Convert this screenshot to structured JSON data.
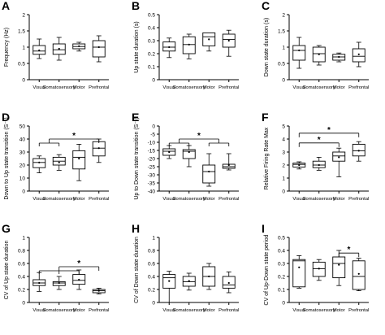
{
  "chart_data": [
    {
      "type": "box",
      "panel_label": "A",
      "ylabel": "Frequency (Hz)",
      "ylim": [
        0,
        2
      ],
      "yticks": [
        0,
        0.5,
        1,
        1.5,
        2
      ],
      "ytick_labels": [
        "0",
        "0.5",
        "1",
        "1.5",
        "2"
      ],
      "categories": [
        "Visual",
        "Somatosensory",
        "Motor",
        "Prefrontal"
      ],
      "boxes": [
        {
          "whislo": 0.65,
          "q1": 0.78,
          "med": 0.88,
          "q3": 1.05,
          "whishi": 1.25,
          "mean": 0.9
        },
        {
          "whislo": 0.6,
          "q1": 0.78,
          "med": 0.92,
          "q3": 1.1,
          "whishi": 1.3,
          "mean": 0.95
        },
        {
          "whislo": 0.88,
          "q1": 0.95,
          "med": 1.02,
          "q3": 1.1,
          "whishi": 1.15,
          "mean": 1.03
        },
        {
          "whislo": 0.55,
          "q1": 0.7,
          "med": 1.0,
          "q3": 1.2,
          "whishi": 1.35,
          "mean": 1.0
        }
      ],
      "significance": []
    },
    {
      "type": "box",
      "panel_label": "B",
      "ylabel": "Up state duration (s)",
      "ylim": [
        0,
        0.5
      ],
      "yticks": [
        0,
        0.1,
        0.2,
        0.3,
        0.4,
        0.5
      ],
      "ytick_labels": [
        "0",
        "0.1",
        "0.2",
        "0.3",
        "0.4",
        "0.5"
      ],
      "categories": [
        "Visual",
        "Somatosensory",
        "Motor",
        "Prefrontal"
      ],
      "boxes": [
        {
          "whislo": 0.17,
          "q1": 0.22,
          "med": 0.25,
          "q3": 0.29,
          "whishi": 0.32,
          "mean": 0.25
        },
        {
          "whislo": 0.16,
          "q1": 0.2,
          "med": 0.27,
          "q3": 0.33,
          "whishi": 0.35,
          "mean": 0.27
        },
        {
          "whislo": 0.22,
          "q1": 0.26,
          "med": 0.33,
          "q3": 0.36,
          "whishi": 0.36,
          "mean": 0.31
        },
        {
          "whislo": 0.18,
          "q1": 0.25,
          "med": 0.31,
          "q3": 0.35,
          "whishi": 0.38,
          "mean": 0.3
        }
      ],
      "significance": []
    },
    {
      "type": "box",
      "panel_label": "C",
      "ylabel": "Down state duration (s)",
      "ylim": [
        0,
        2
      ],
      "yticks": [
        0,
        0.5,
        1,
        1.5,
        2
      ],
      "ytick_labels": [
        "0",
        "0.5",
        "1",
        "1.5",
        "2"
      ],
      "categories": [
        "Visual",
        "Somatosensory",
        "Motor",
        "Prefrontal"
      ],
      "boxes": [
        {
          "whislo": 0.35,
          "q1": 0.6,
          "med": 0.9,
          "q3": 1.05,
          "whishi": 1.3,
          "mean": 0.9
        },
        {
          "whislo": 0.45,
          "q1": 0.55,
          "med": 0.8,
          "q3": 1.0,
          "whishi": 1.05,
          "mean": 0.78
        },
        {
          "whislo": 0.55,
          "q1": 0.6,
          "med": 0.7,
          "q3": 0.78,
          "whishi": 0.82,
          "mean": 0.7
        },
        {
          "whislo": 0.4,
          "q1": 0.55,
          "med": 0.72,
          "q3": 0.95,
          "whishi": 1.15,
          "mean": 0.78
        }
      ],
      "significance": []
    },
    {
      "type": "box",
      "panel_label": "D",
      "ylabel": "Down to Up state transition (S⁻¹)",
      "ylim": [
        0,
        50
      ],
      "yticks": [
        0,
        10,
        20,
        30,
        40,
        50
      ],
      "ytick_labels": [
        "0",
        "10",
        "20",
        "30",
        "40",
        "50"
      ],
      "categories": [
        "Visual",
        "Somatosensory",
        "Motor",
        "Prefrontal"
      ],
      "boxes": [
        {
          "whislo": 14,
          "q1": 18,
          "med": 22,
          "q3": 25,
          "whishi": 27,
          "mean": 22
        },
        {
          "whislo": 16,
          "q1": 20,
          "med": 23,
          "q3": 26,
          "whishi": 28,
          "mean": 22
        },
        {
          "whislo": 8,
          "q1": 17,
          "med": 26,
          "q3": 31,
          "whishi": 36,
          "mean": 25
        },
        {
          "whislo": 22,
          "q1": 27,
          "med": 33,
          "q3": 38,
          "whishi": 40,
          "mean": 33
        }
      ],
      "significance": [
        {
          "label": "*",
          "bracket_y": 40,
          "from": [
            0,
            1
          ],
          "to": 3
        }
      ]
    },
    {
      "type": "box",
      "panel_label": "E",
      "ylabel": "Up to Down state transition (S⁻¹)",
      "ylim": [
        -40,
        0
      ],
      "yticks": [
        -40,
        -35,
        -30,
        -25,
        -20,
        -15,
        -10,
        -5,
        0
      ],
      "ytick_labels": [
        "-40",
        "-35",
        "-30",
        "-25",
        "-20",
        "-15",
        "-10",
        "-5",
        "0"
      ],
      "categories": [
        "Visual",
        "Somatosensory",
        "Motor",
        "Prefrontal"
      ],
      "boxes": [
        {
          "whislo": -20,
          "q1": -18,
          "med": -15.5,
          "q3": -14,
          "whishi": -12,
          "mean": -16
        },
        {
          "whislo": -25,
          "q1": -20,
          "med": -15.5,
          "q3": -14.5,
          "whishi": -12,
          "mean": -16
        },
        {
          "whislo": -37,
          "q1": -35,
          "med": -28,
          "q3": -24,
          "whishi": -17,
          "mean": -28
        },
        {
          "whislo": -27,
          "q1": -26,
          "med": -25,
          "q3": -23.5,
          "whishi": -17,
          "mean": -24
        }
      ],
      "significance": [
        {
          "label": "*",
          "bracket_y": -8,
          "from": [
            0,
            1
          ],
          "to": [
            2,
            3
          ]
        }
      ]
    },
    {
      "type": "box",
      "panel_label": "F",
      "ylabel": "Relative Firing Rate Max",
      "ylim": [
        0,
        5
      ],
      "yticks": [
        0,
        1,
        2,
        3,
        4,
        5
      ],
      "ytick_labels": [
        "0",
        "1",
        "2",
        "3",
        "4",
        "5"
      ],
      "categories": [
        "Visual",
        "Somatosensory",
        "Motor",
        "Prefrontal"
      ],
      "boxes": [
        {
          "whislo": 1.7,
          "q1": 1.85,
          "med": 2.05,
          "q3": 2.15,
          "whishi": 2.25,
          "mean": 2.0
        },
        {
          "whislo": 1.6,
          "q1": 1.8,
          "med": 2.0,
          "q3": 2.3,
          "whishi": 2.6,
          "mean": 2.0
        },
        {
          "whislo": 1.1,
          "q1": 2.3,
          "med": 2.7,
          "q3": 3.0,
          "whishi": 3.3,
          "mean": 2.6
        },
        {
          "whislo": 2.3,
          "q1": 2.7,
          "med": 3.1,
          "q3": 3.6,
          "whishi": 3.8,
          "mean": 3.1
        }
      ],
      "significance": [
        {
          "label": "*",
          "bracket_y": 4.45,
          "from": 0,
          "to": 3
        },
        {
          "label": "*",
          "bracket_y": 3.7,
          "from": 0,
          "to": 2
        }
      ]
    },
    {
      "type": "box",
      "panel_label": "G",
      "ylabel": "CV of Up state duration",
      "ylim": [
        0,
        1
      ],
      "yticks": [
        0,
        0.2,
        0.4,
        0.6,
        0.8,
        1
      ],
      "ytick_labels": [
        "0",
        "0.2",
        "0.4",
        "0.6",
        "0.8",
        "1"
      ],
      "categories": [
        "Visual",
        "Somatosensory",
        "Motor",
        "Prefrontal"
      ],
      "boxes": [
        {
          "whislo": 0.17,
          "q1": 0.26,
          "med": 0.3,
          "q3": 0.35,
          "whishi": 0.46,
          "mean": 0.3
        },
        {
          "whislo": 0.2,
          "q1": 0.26,
          "med": 0.3,
          "q3": 0.32,
          "whishi": 0.4,
          "mean": 0.3
        },
        {
          "whislo": 0.2,
          "q1": 0.28,
          "med": 0.34,
          "q3": 0.43,
          "whishi": 0.5,
          "mean": 0.35
        },
        {
          "whislo": 0.13,
          "q1": 0.15,
          "med": 0.18,
          "q3": 0.2,
          "whishi": 0.22,
          "mean": 0.18
        }
      ],
      "significance": [
        {
          "label": "*",
          "bracket_y": 0.55,
          "from": [
            0,
            1,
            2
          ],
          "to": 3
        }
      ]
    },
    {
      "type": "box",
      "panel_label": "H",
      "ylabel": "CV of Down state duration",
      "ylim": [
        0,
        1
      ],
      "yticks": [
        0,
        0.2,
        0.4,
        0.6,
        0.8,
        1
      ],
      "ytick_labels": [
        "0",
        "0.2",
        "0.4",
        "0.6",
        "0.8",
        "1"
      ],
      "categories": [
        "Visual",
        "Somatosensory",
        "Motor",
        "Prefrontal"
      ],
      "boxes": [
        {
          "whislo": 0.0,
          "q1": 0.22,
          "med": 0.38,
          "q3": 0.43,
          "whishi": 0.48,
          "mean": 0.33
        },
        {
          "whislo": 0.19,
          "q1": 0.25,
          "med": 0.32,
          "q3": 0.4,
          "whishi": 0.45,
          "mean": 0.33
        },
        {
          "whislo": 0.2,
          "q1": 0.25,
          "med": 0.4,
          "q3": 0.55,
          "whishi": 0.6,
          "mean": 0.4
        },
        {
          "whislo": 0.15,
          "q1": 0.22,
          "med": 0.27,
          "q3": 0.4,
          "whishi": 0.47,
          "mean": 0.3
        }
      ],
      "significance": []
    },
    {
      "type": "box",
      "panel_label": "I",
      "ylabel": "CV of Up-Down state period",
      "ylim": [
        0,
        0.5
      ],
      "yticks": [
        0,
        0.1,
        0.2,
        0.3,
        0.4,
        0.5
      ],
      "ytick_labels": [
        "0",
        "0.1",
        "0.2",
        "0.3",
        "0.4",
        "0.5"
      ],
      "categories": [
        "Visual",
        "Somatosensory",
        "Motor",
        "Prefrontal"
      ],
      "boxes": [
        {
          "whislo": 0.11,
          "q1": 0.12,
          "med": 0.32,
          "q3": 0.33,
          "whishi": 0.36,
          "mean": 0.27
        },
        {
          "whislo": 0.17,
          "q1": 0.2,
          "med": 0.26,
          "q3": 0.31,
          "whishi": 0.33,
          "mean": 0.26
        },
        {
          "whislo": 0.13,
          "q1": 0.19,
          "med": 0.3,
          "q3": 0.35,
          "whishi": 0.4,
          "mean": 0.29
        },
        {
          "whislo": 0.09,
          "q1": 0.1,
          "med": 0.2,
          "q3": 0.32,
          "whishi": 0.34,
          "mean": 0.22
        }
      ],
      "significance": [
        {
          "label": "*",
          "bracket_y": 0.38,
          "from": 2,
          "to": 3
        }
      ]
    }
  ]
}
